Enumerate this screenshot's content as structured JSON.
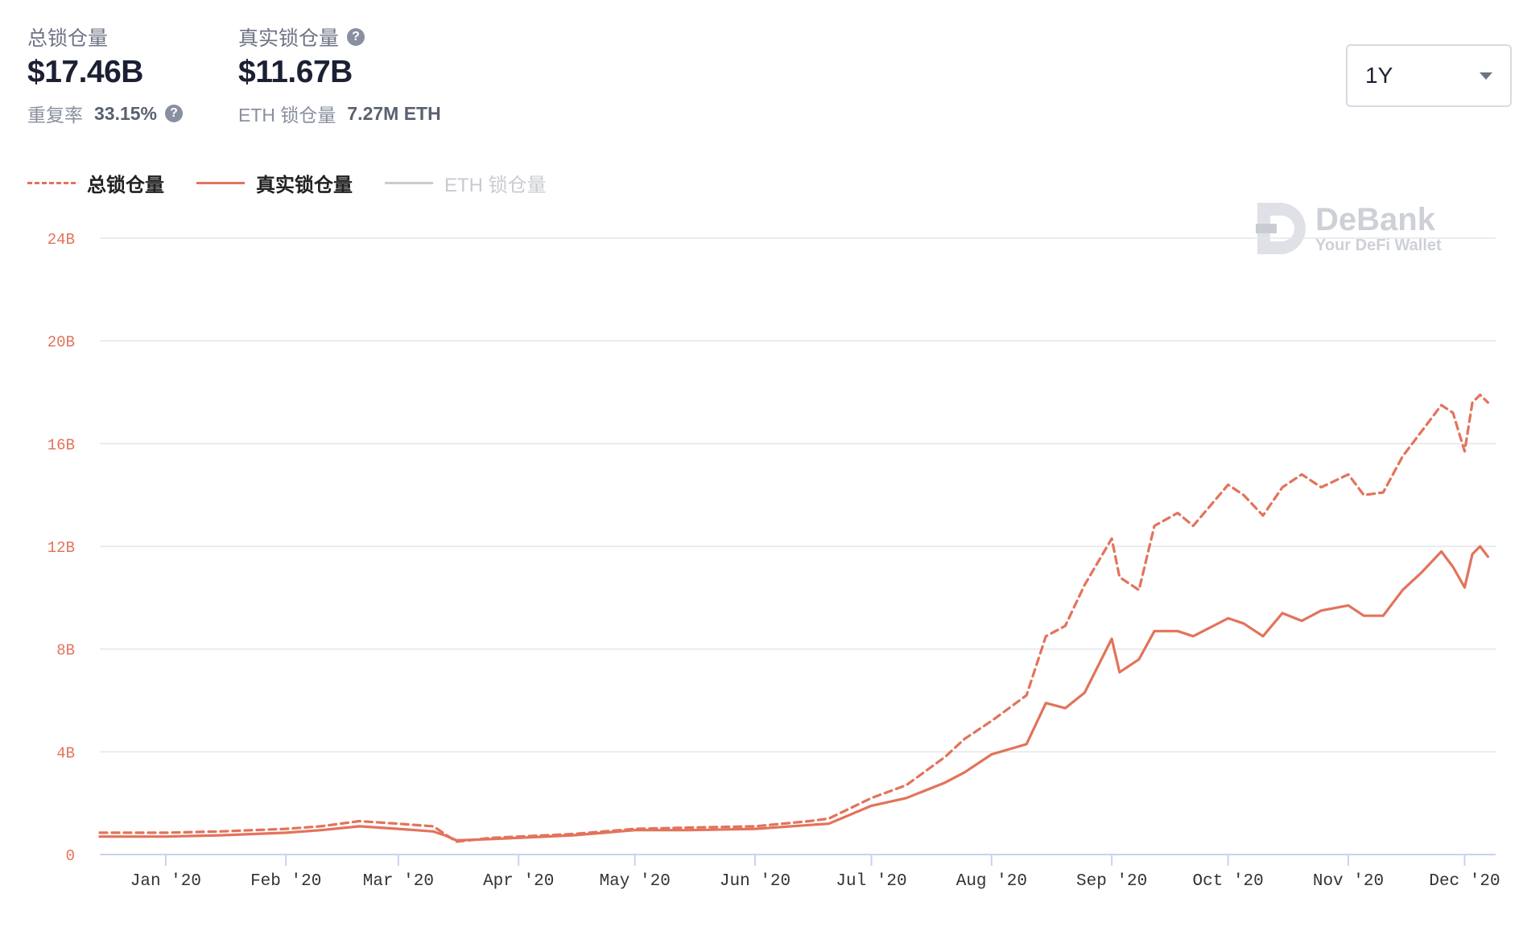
{
  "stats": {
    "tvl_label": "总锁仓量",
    "tvl_value": "$17.46B",
    "repeat_label": "重复率",
    "repeat_value": "33.15%",
    "real_label": "真实锁仓量",
    "real_value": "$11.67B",
    "eth_label": "ETH 锁仓量",
    "eth_value": "7.27M ETH",
    "help_glyph": "?"
  },
  "range": {
    "selected": "1Y"
  },
  "legend": [
    {
      "label": "总锁仓量",
      "style": "dashed",
      "color": "#e2735b"
    },
    {
      "label": "真实锁仓量",
      "style": "solid",
      "color": "#e2735b"
    },
    {
      "label": "ETH 锁仓量",
      "style": "solid",
      "color": "#c9cbd1"
    }
  ],
  "watermark": {
    "title": "DeBank",
    "subtitle": "Your DeFi Wallet"
  },
  "chart_data": {
    "type": "line",
    "x_tick_labels": [
      "Jan '20",
      "Feb '20",
      "Mar '20",
      "Apr '20",
      "May '20",
      "Jun '20",
      "Jul '20",
      "Aug '20",
      "Sep '20",
      "Oct '20",
      "Nov '20",
      "Dec '20"
    ],
    "y_tick_labels": [
      "0",
      "4B",
      "8B",
      "12B",
      "16B",
      "20B",
      "24B"
    ],
    "ylim": [
      0,
      24
    ],
    "grid": true,
    "x": [
      "2019-12-15",
      "2020-01-01",
      "2020-01-15",
      "2020-02-01",
      "2020-02-10",
      "2020-02-20",
      "2020-03-01",
      "2020-03-10",
      "2020-03-13",
      "2020-03-16",
      "2020-03-25",
      "2020-04-01",
      "2020-04-15",
      "2020-05-01",
      "2020-05-15",
      "2020-06-01",
      "2020-06-15",
      "2020-06-20",
      "2020-07-01",
      "2020-07-10",
      "2020-07-20",
      "2020-07-25",
      "2020-08-01",
      "2020-08-10",
      "2020-08-15",
      "2020-08-20",
      "2020-08-25",
      "2020-09-01",
      "2020-09-03",
      "2020-09-08",
      "2020-09-12",
      "2020-09-18",
      "2020-09-22",
      "2020-10-01",
      "2020-10-05",
      "2020-10-10",
      "2020-10-15",
      "2020-10-20",
      "2020-10-25",
      "2020-11-01",
      "2020-11-05",
      "2020-11-10",
      "2020-11-15",
      "2020-11-20",
      "2020-11-25",
      "2020-11-28",
      "2020-12-01",
      "2020-12-03",
      "2020-12-05",
      "2020-12-07"
    ],
    "series": [
      {
        "name": "总锁仓量",
        "style": "dashed",
        "color": "#e2735b",
        "values": [
          0.85,
          0.85,
          0.9,
          1.0,
          1.1,
          1.3,
          1.2,
          1.1,
          0.8,
          0.5,
          0.65,
          0.7,
          0.8,
          1.0,
          1.05,
          1.1,
          1.3,
          1.4,
          2.2,
          2.7,
          3.8,
          4.5,
          5.2,
          6.2,
          8.5,
          8.9,
          10.5,
          12.3,
          10.8,
          10.3,
          12.8,
          13.3,
          12.8,
          14.4,
          14.0,
          13.2,
          14.3,
          14.8,
          14.3,
          14.8,
          14.0,
          14.1,
          15.5,
          16.5,
          17.5,
          17.2,
          15.7,
          17.6,
          17.9,
          17.6
        ]
      },
      {
        "name": "真实锁仓量",
        "style": "solid",
        "color": "#e2735b",
        "values": [
          0.7,
          0.7,
          0.75,
          0.85,
          0.95,
          1.1,
          1.0,
          0.9,
          0.75,
          0.55,
          0.6,
          0.65,
          0.75,
          0.95,
          0.95,
          1.0,
          1.15,
          1.2,
          1.9,
          2.2,
          2.8,
          3.2,
          3.9,
          4.3,
          5.9,
          5.7,
          6.3,
          8.4,
          7.1,
          7.6,
          8.7,
          8.7,
          8.5,
          9.2,
          9.0,
          8.5,
          9.4,
          9.1,
          9.5,
          9.7,
          9.3,
          9.3,
          10.3,
          11.0,
          11.8,
          11.2,
          10.4,
          11.7,
          12.0,
          11.6
        ]
      }
    ]
  }
}
